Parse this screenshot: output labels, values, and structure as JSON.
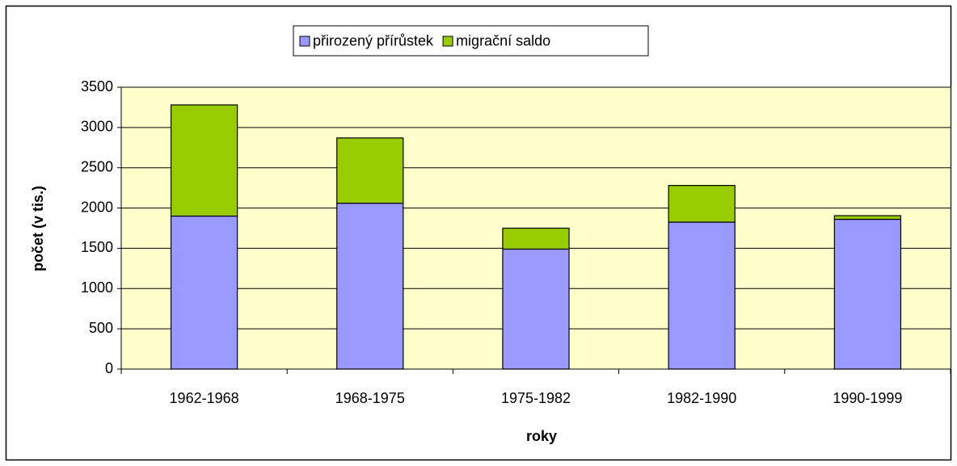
{
  "chart_data": {
    "type": "stacked_bar",
    "categories": [
      "1962-1968",
      "1968-1975",
      "1975-1982",
      "1982-1990",
      "1990-1999"
    ],
    "series": [
      {
        "name": "přirozený přírůstek",
        "color": "#9999ff",
        "values": [
          1900,
          2060,
          1490,
          1825,
          1860
        ]
      },
      {
        "name": "migrační saldo",
        "color": "#99cc00",
        "values": [
          1380,
          810,
          260,
          455,
          45
        ]
      }
    ],
    "xlabel": "roky",
    "ylabel": "počet (v tis.)",
    "ylim": [
      0,
      3500
    ],
    "yticks": [
      0,
      500,
      1000,
      1500,
      2000,
      2500,
      3000,
      3500
    ],
    "grid": true,
    "legend": "top",
    "plot_background": "#ffffcc"
  }
}
